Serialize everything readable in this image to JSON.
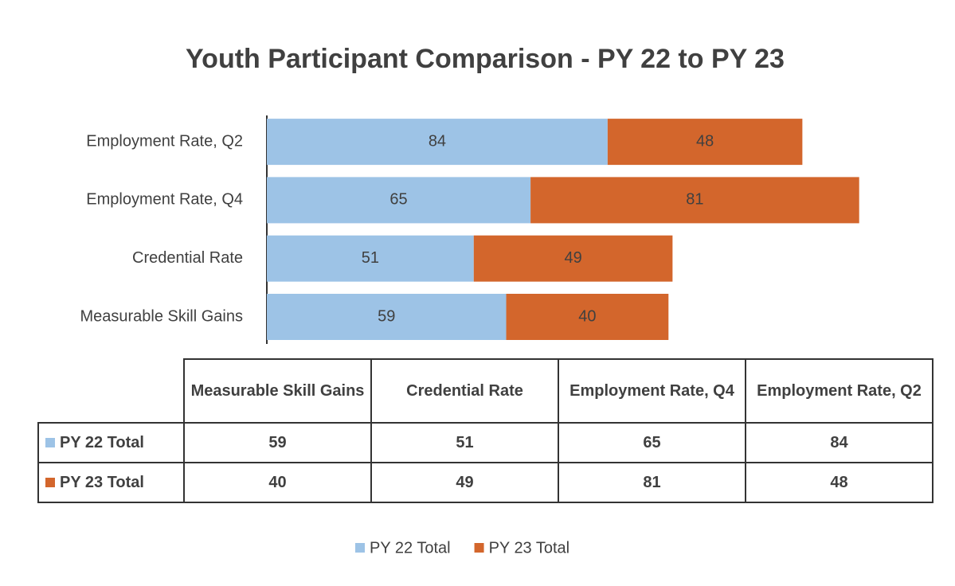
{
  "chart_data": {
    "type": "stacked_barh",
    "title": "Youth Participant Comparison - PY 22 to PY 23",
    "categories": [
      "Measurable Skill Gains",
      "Credential Rate",
      "Employment Rate, Q4",
      "Employment Rate, Q2"
    ],
    "series": [
      {
        "name": "PY 22 Total",
        "color": "#9dc3e6",
        "values": [
          59,
          51,
          65,
          84
        ]
      },
      {
        "name": "PY 23 Total",
        "color": "#d3662c",
        "values": [
          40,
          49,
          81,
          48
        ]
      }
    ],
    "xlim": [
      0,
      160
    ],
    "legend": "bottom",
    "data_table": true
  }
}
